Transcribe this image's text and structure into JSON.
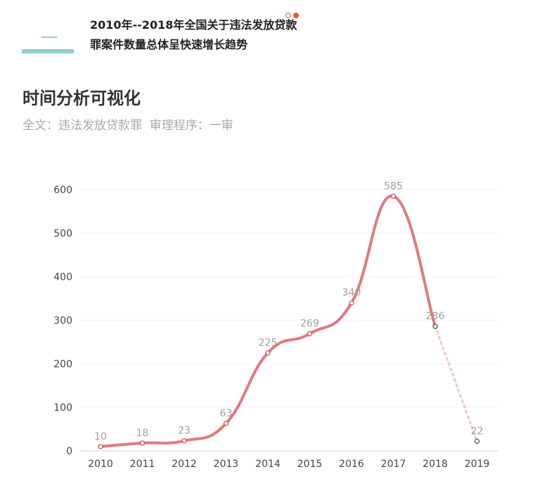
{
  "header": {
    "title": "2010年--2018年全国关于违法发放贷款罪案件数量总体呈快速增长趋势"
  },
  "section": {
    "title": "时间分析可视化",
    "subtitle": "全文：违法发放贷款罪  审理程序：一审"
  },
  "colors": {
    "accent": "#8ecfcf",
    "line": "#e07a7a",
    "dot_marker": "#e8563f"
  },
  "chart_data": {
    "type": "line",
    "categories": [
      "2010",
      "2011",
      "2012",
      "2013",
      "2014",
      "2015",
      "2016",
      "2017",
      "2018",
      "2019"
    ],
    "values": [
      10,
      18,
      23,
      63,
      225,
      269,
      340,
      585,
      286,
      22
    ],
    "value_labels": [
      "10",
      "18",
      "23",
      "63",
      "225",
      "269",
      "340",
      "585",
      "286",
      "22"
    ],
    "projected_from_index": 8,
    "y_ticks": [
      "0",
      "100",
      "200",
      "300",
      "400",
      "500",
      "600"
    ],
    "ylim": [
      0,
      600
    ],
    "grid": true,
    "legend": false
  }
}
